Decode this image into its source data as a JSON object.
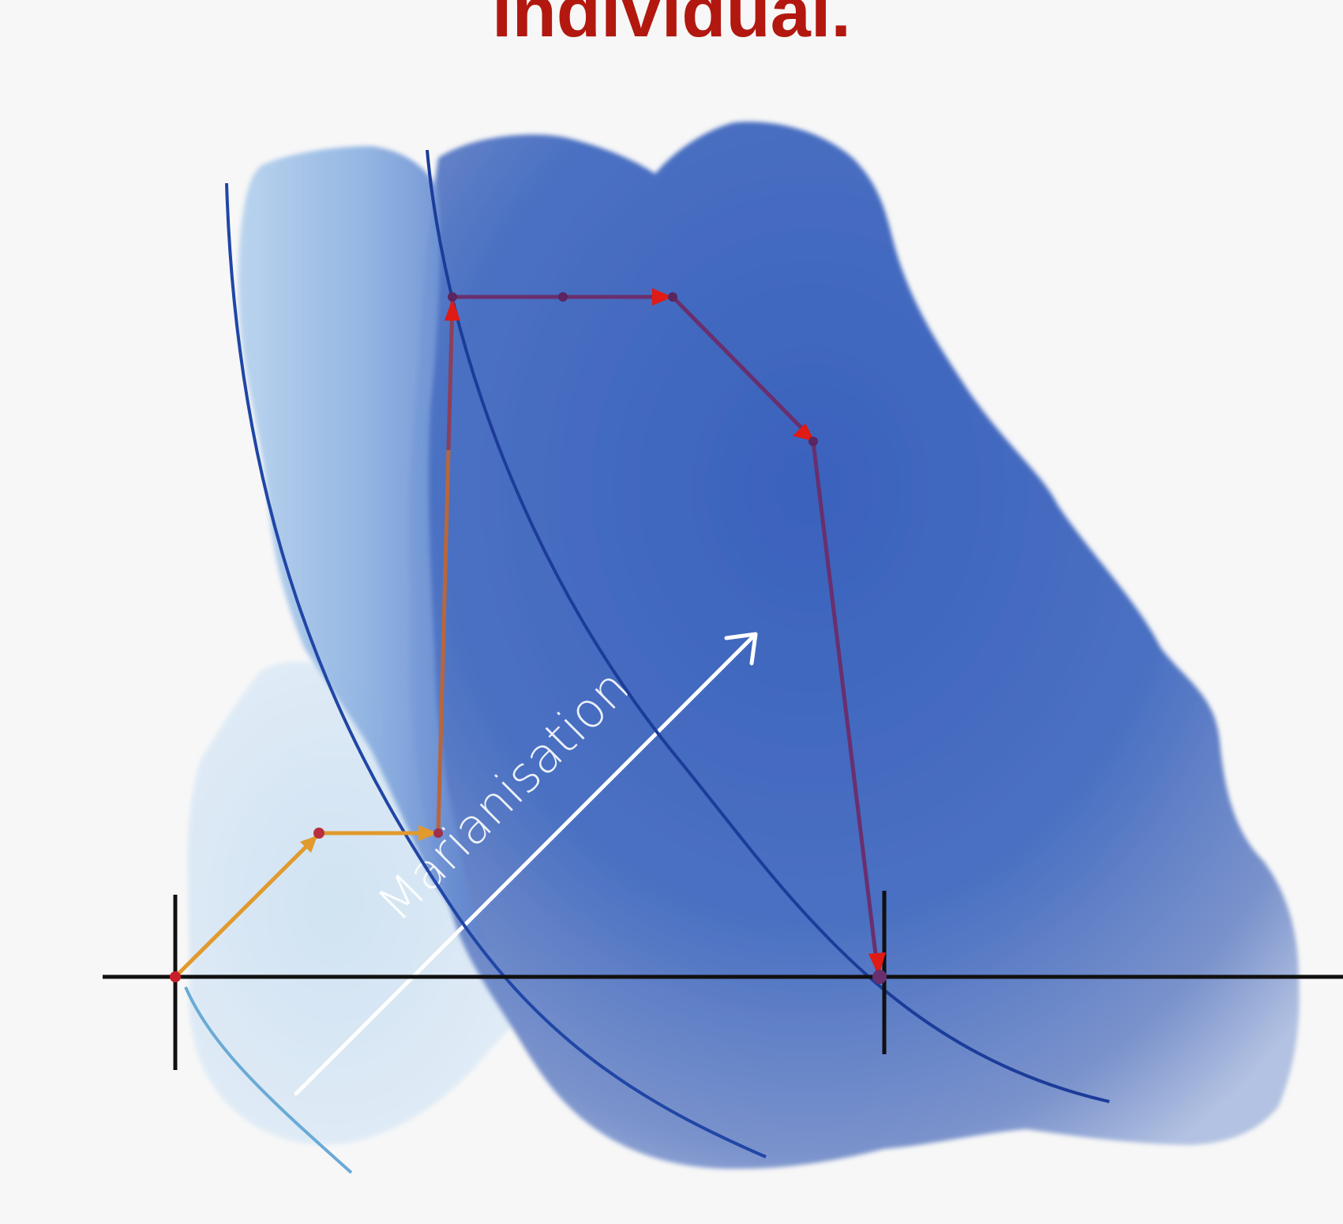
{
  "title": "individual.",
  "arrow_label": "Marianisation",
  "colors": {
    "title": "#b2180f",
    "background": "#f7f7f7",
    "wash_dark": "#3f62b8",
    "wash_light": "#cfe2f1",
    "curve": "#1f3e9e",
    "curve_light": "#6aaad6",
    "path_orange": "#e19a2c",
    "path_purple": "#6a2f6e",
    "arrowhead_red": "#e01a14",
    "axis": "#101010",
    "label_arrow": "#ffffff"
  }
}
